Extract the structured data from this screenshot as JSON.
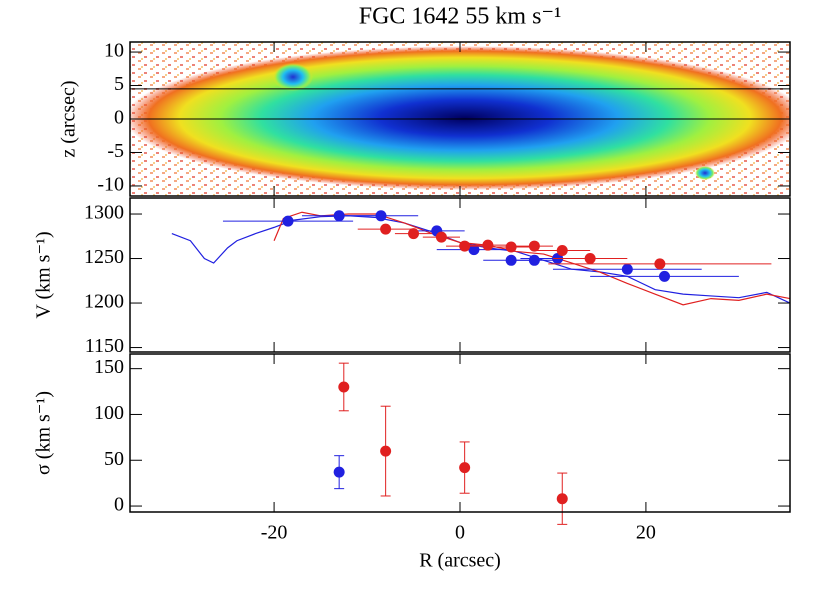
{
  "chart_data": [
    {
      "type": "image",
      "title": "FGC 1642 55 km s⁻¹",
      "ylabel": "z (arcsec)",
      "xlim": [
        -35.5,
        35.5
      ],
      "ylim": [
        -11.5,
        11.5
      ],
      "yticks": [
        -10,
        -5,
        0,
        5,
        10
      ],
      "hlines": [
        4.5,
        0
      ],
      "hline_color": "#000000"
    },
    {
      "type": "scatter",
      "ylabel": "V (km s⁻¹)",
      "xlim": [
        -35.5,
        35.5
      ],
      "ylim": [
        1145,
        1318
      ],
      "yticks": [
        1150,
        1200,
        1250,
        1300
      ],
      "series": [
        {
          "color": "#2020e0",
          "style": "line",
          "x": [
            -31,
            -29,
            -27.5,
            -26.5,
            -25,
            -24,
            -22,
            -20,
            -18,
            -15,
            -12,
            -9,
            -6,
            -3,
            0,
            3,
            6,
            9,
            12,
            15,
            18,
            21,
            24,
            27,
            30,
            33,
            35.5
          ],
          "values": [
            1278,
            1270,
            1250,
            1245,
            1262,
            1270,
            1278,
            1285,
            1293,
            1297,
            1298,
            1296,
            1290,
            1280,
            1268,
            1262,
            1258,
            1248,
            1238,
            1235,
            1230,
            1215,
            1210,
            1208,
            1206,
            1212,
            1200
          ]
        },
        {
          "color": "#e02020",
          "style": "line",
          "x": [
            -20,
            -19,
            -17,
            -15,
            -12,
            -9,
            -6,
            -3,
            0,
            3,
            6,
            9,
            12,
            15,
            18,
            21,
            24,
            27,
            30,
            33,
            35.5
          ],
          "values": [
            1270,
            1295,
            1302,
            1298,
            1300,
            1300,
            1290,
            1278,
            1268,
            1265,
            1258,
            1255,
            1245,
            1235,
            1222,
            1210,
            1198,
            1205,
            1203,
            1210,
            1205
          ]
        },
        {
          "color": "#2020e0",
          "style": "points",
          "x": [
            -18.5,
            -13,
            -8.5,
            -2.5,
            1.5,
            5.5,
            8,
            10.5,
            18,
            22
          ],
          "values": [
            1292,
            1298,
            1298,
            1281,
            1260,
            1248,
            1248,
            1250,
            1238,
            1230
          ],
          "xerr": [
            7,
            4,
            4,
            3,
            4,
            3,
            3,
            4,
            8,
            8
          ]
        },
        {
          "color": "#e02020",
          "style": "points",
          "x": [
            -8,
            -5,
            -2,
            0.5,
            3,
            5.5,
            8,
            11,
            14,
            21.5
          ],
          "values": [
            1283,
            1278,
            1274,
            1264,
            1265,
            1263,
            1264,
            1259,
            1250,
            1244
          ],
          "xerr": [
            3,
            2,
            2,
            2,
            2,
            2,
            2,
            3,
            4,
            12
          ]
        }
      ]
    },
    {
      "type": "scatter",
      "ylabel": "σ (km s⁻¹)",
      "xlabel": "R (arcsec)",
      "xlim": [
        -35.5,
        35.5
      ],
      "ylim": [
        -6.5,
        166
      ],
      "xticks": [
        -20,
        0,
        20
      ],
      "yticks": [
        0,
        50,
        100,
        150
      ],
      "series": [
        {
          "color": "#2020e0",
          "style": "points",
          "x": [
            -13
          ],
          "values": [
            37
          ],
          "yerr": [
            18
          ]
        },
        {
          "color": "#e02020",
          "style": "points",
          "x": [
            -12.5,
            -8,
            0.5,
            11
          ],
          "values": [
            130,
            60,
            42,
            8
          ],
          "yerr": [
            26,
            49,
            28,
            28
          ]
        }
      ]
    }
  ]
}
